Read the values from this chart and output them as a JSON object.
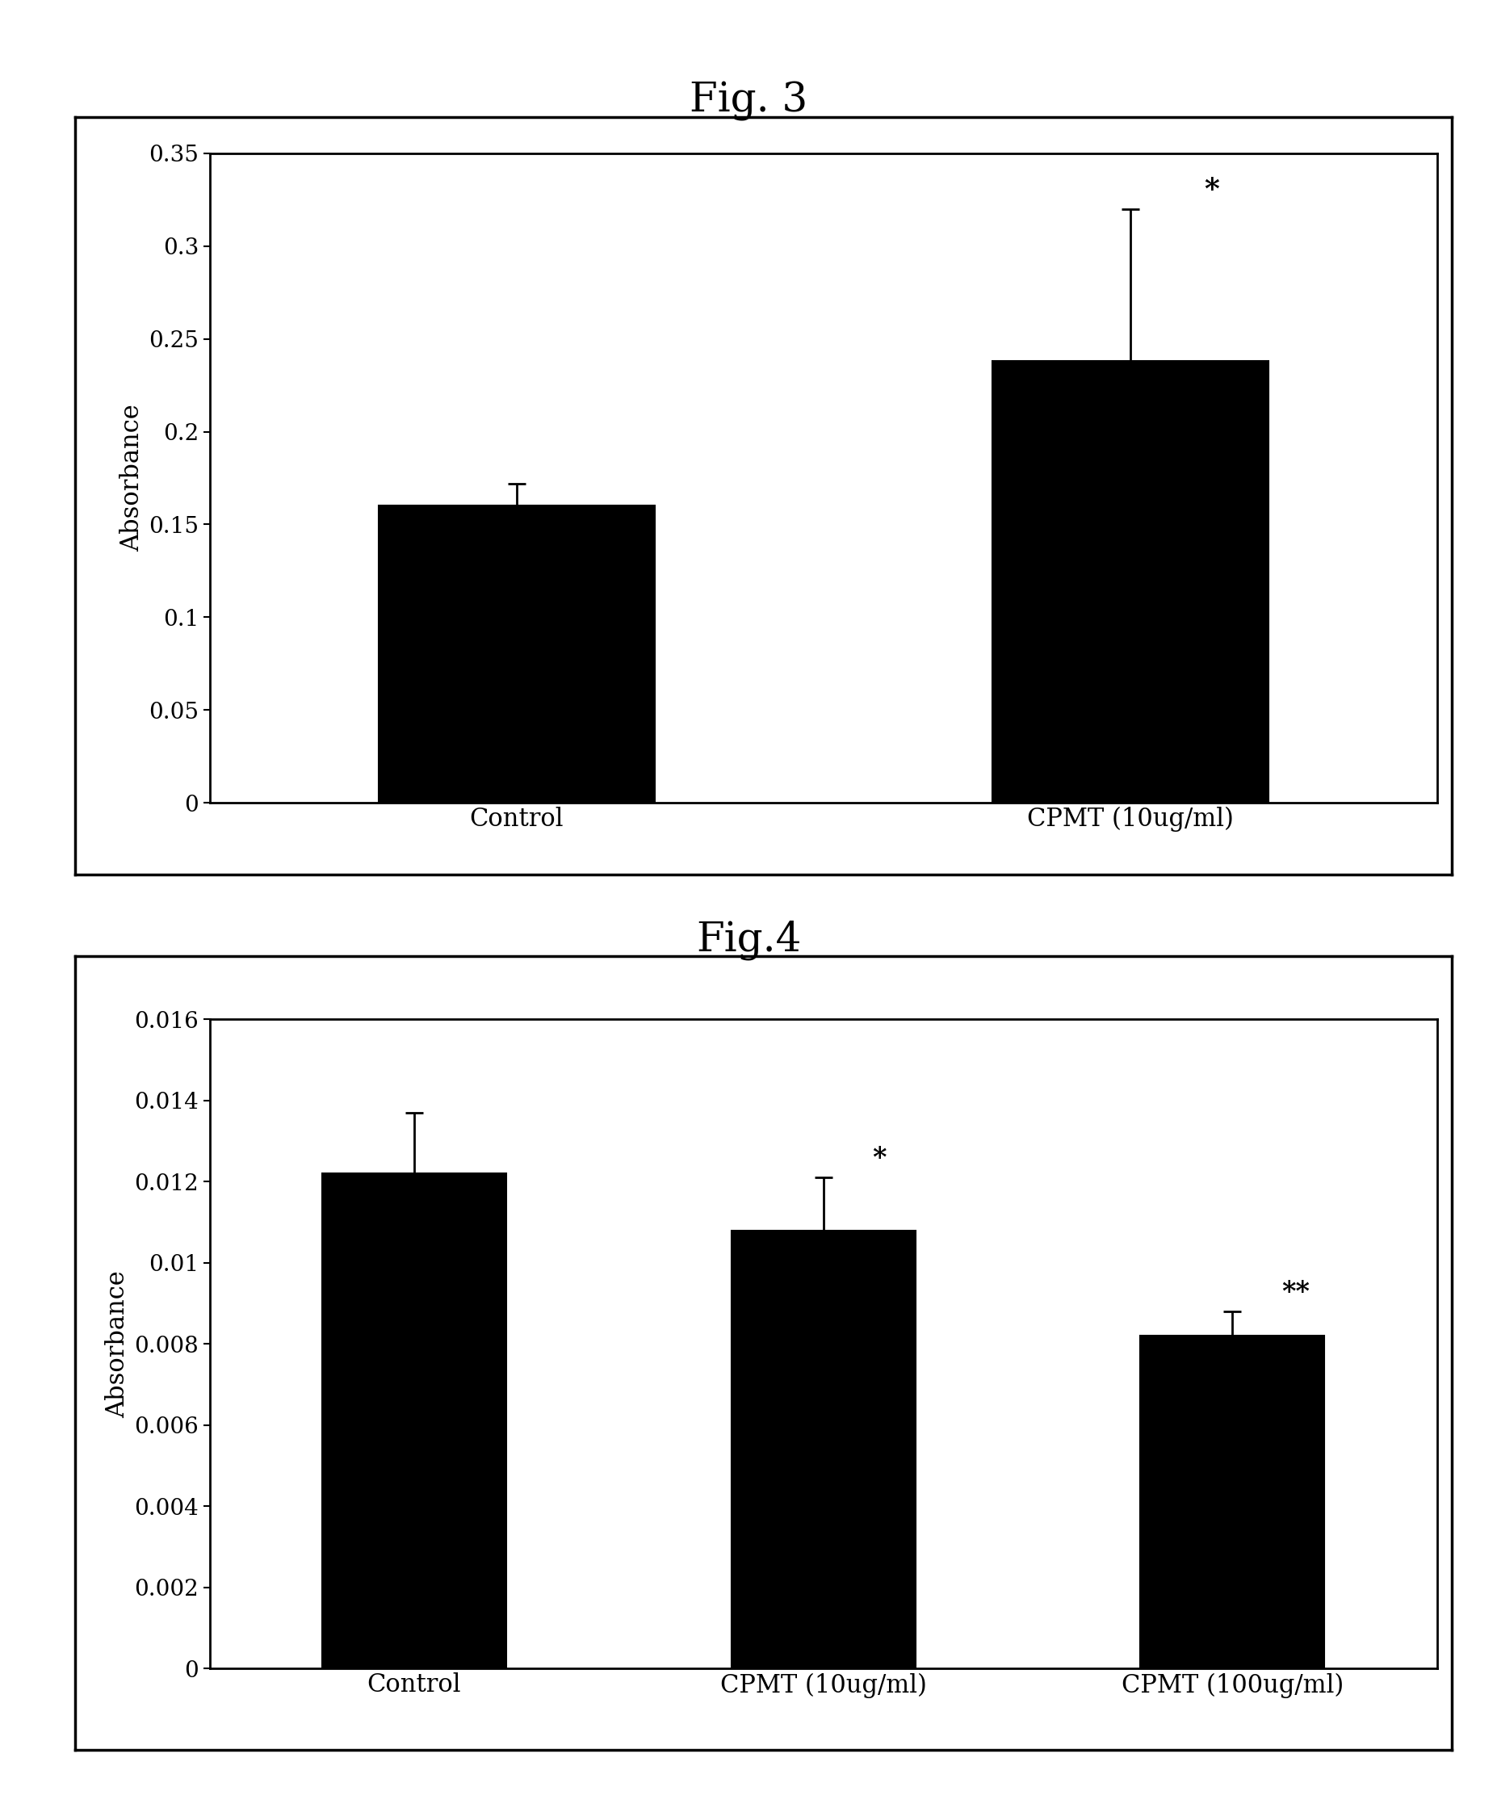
{
  "fig3_title": "Fig. 3",
  "fig4_title": "Fig.4",
  "fig3_categories": [
    "Control",
    "CPMT (10ug/ml)"
  ],
  "fig3_values": [
    0.16,
    0.238
  ],
  "fig3_errors": [
    0.012,
    0.082
  ],
  "fig3_ylim": [
    0,
    0.35
  ],
  "fig3_yticks": [
    0,
    0.05,
    0.1,
    0.15,
    0.2,
    0.25,
    0.3,
    0.35
  ],
  "fig3_ytick_labels": [
    "0",
    "0.05",
    "0.1",
    "0.15",
    "0.2",
    "0.25",
    "0.3",
    "0.35"
  ],
  "fig3_ylabel": "Absorbance",
  "fig3_annotations": [
    "",
    "*"
  ],
  "fig4_categories": [
    "Control",
    "CPMT (10ug/ml)",
    "CPMT (100ug/ml)"
  ],
  "fig4_values": [
    0.0122,
    0.0108,
    0.0082
  ],
  "fig4_errors": [
    0.0015,
    0.0013,
    0.0006
  ],
  "fig4_ylim": [
    0,
    0.016
  ],
  "fig4_yticks": [
    0,
    0.002,
    0.004,
    0.006,
    0.008,
    0.01,
    0.012,
    0.014,
    0.016
  ],
  "fig4_ytick_labels": [
    "0",
    "0.002",
    "0.004",
    "0.006",
    "0.008",
    "0.01",
    "0.012",
    "0.014",
    "0.016"
  ],
  "fig4_ylabel": "Absorbance",
  "fig4_annotations": [
    "",
    "*",
    "**"
  ],
  "bar_color": "#000000",
  "bar_edgecolor": "#000000",
  "background_color": "#ffffff",
  "title_fontsize": 36,
  "label_fontsize": 22,
  "tick_fontsize": 20,
  "annotation_fontsize": 22,
  "xlabel_fontsize": 22
}
